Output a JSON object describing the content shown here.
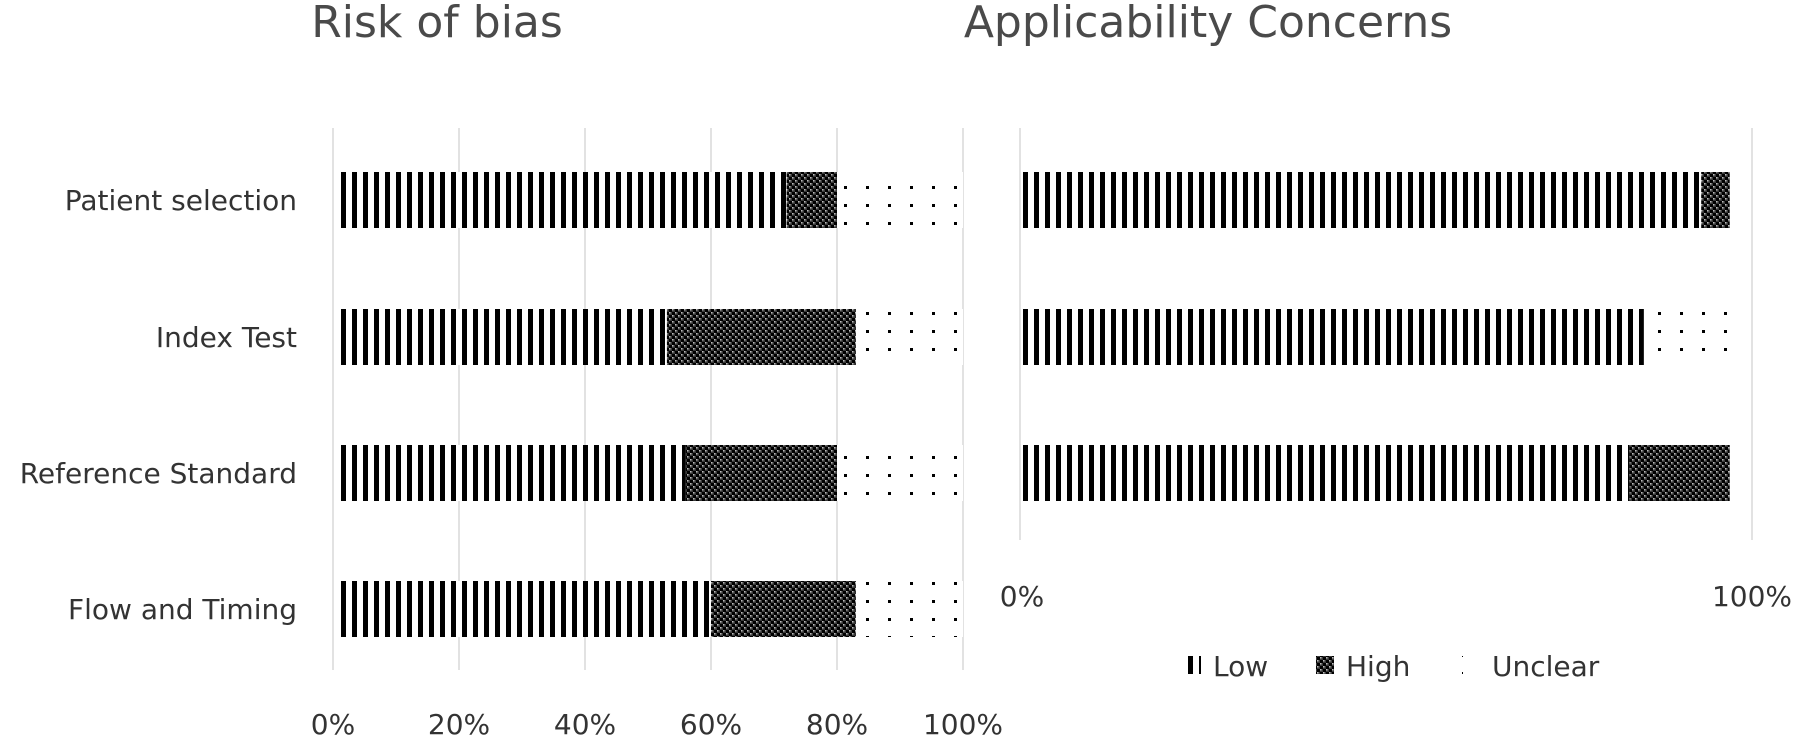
{
  "chart_data": [
    {
      "type": "bar",
      "orientation": "horizontal",
      "stacked": true,
      "title": "Risk of bias",
      "categories": [
        "Patient selection",
        "Index Test",
        "Reference Standard",
        "Flow and Timing"
      ],
      "series": [
        {
          "name": "Low",
          "values": [
            72,
            53,
            56,
            60
          ]
        },
        {
          "name": "High",
          "values": [
            8,
            30,
            24,
            23
          ]
        },
        {
          "name": "Unclear",
          "values": [
            20,
            17,
            20,
            17
          ]
        }
      ],
      "xlim": [
        0,
        100
      ],
      "x_ticks": [
        "0%",
        "20%",
        "40%",
        "60%",
        "80%",
        "100%"
      ],
      "grid": true
    },
    {
      "type": "bar",
      "orientation": "horizontal",
      "stacked": true,
      "title": "Applicability Concerns",
      "categories": [
        "Patient selection",
        "Index Test",
        "Reference Standard"
      ],
      "series": [
        {
          "name": "Low",
          "values": [
            95,
            87,
            85
          ]
        },
        {
          "name": "High",
          "values": [
            4,
            0,
            14
          ]
        },
        {
          "name": "Unclear",
          "values": [
            1,
            13,
            1
          ]
        }
      ],
      "xlim": [
        0,
        100
      ],
      "x_ticks": [
        "0%",
        "100%"
      ],
      "grid": true
    }
  ],
  "legend": {
    "position": "bottom-right",
    "items": [
      {
        "label": "Low",
        "pattern": "vertical-lines"
      },
      {
        "label": "High",
        "pattern": "checker"
      },
      {
        "label": "Unclear",
        "pattern": "dots"
      }
    ]
  },
  "colors": {
    "ink": "#000000",
    "grid": "#d9d9d9",
    "text": "#333333"
  }
}
